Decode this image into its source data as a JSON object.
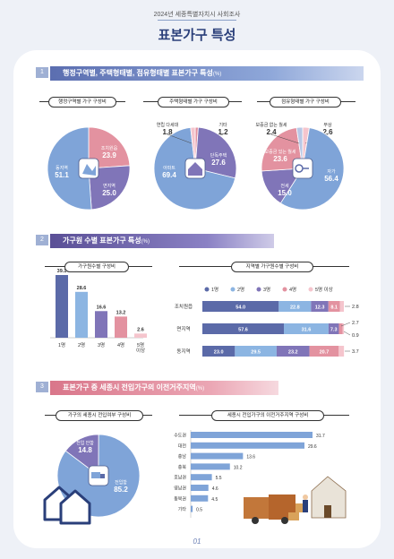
{
  "header": {
    "subtitle": "2024년 세종특별자치시 사회조사",
    "title": "표본가구 특성"
  },
  "sections": [
    {
      "num": "1",
      "title": "행정구역별, 주택형태별, 점유형태별 표본가구 특성",
      "unit": "(%)"
    },
    {
      "num": "2",
      "title": "가구원 수별 표본가구 특성",
      "unit": "(%)"
    },
    {
      "num": "3",
      "title": "표본가구 중 세종시 전입가구의 이전거주지역",
      "unit": "(%)"
    }
  ],
  "footer": {
    "page": "01"
  },
  "colors": {
    "blue": "#7fa4d8",
    "purple": "#8075b8",
    "pink": "#e392a0",
    "navy": "#5b6aa8",
    "light_blue": "#8cb5e2",
    "light_pink": "#f5c5cd"
  },
  "icons": [
    "map-icon",
    "house-icon",
    "key-icon",
    "truck-icon",
    "houses-icon",
    "moving-scene-icon"
  ],
  "chart_data": [
    {
      "id": "pie_admin",
      "type": "pie",
      "title": "행정구역별 가구 구성비",
      "categories": [
        "조치원읍",
        "면지역",
        "동지역"
      ],
      "values": [
        23.9,
        25.0,
        51.1
      ],
      "labels": [
        "23.9",
        "25.0",
        "51.1"
      ],
      "colors": [
        "#e392a0",
        "#8075b8",
        "#7fa4d8"
      ]
    },
    {
      "id": "pie_housing",
      "type": "pie",
      "title": "주택형태별 가구 구성비",
      "categories": [
        "기타",
        "단독주택",
        "아파트",
        "연립 다세대"
      ],
      "values": [
        1.2,
        27.6,
        69.4,
        1.8
      ],
      "labels": [
        "1.2",
        "27.6",
        "69.4",
        "1.8"
      ],
      "colors": [
        "#e392a0",
        "#8075b8",
        "#7fa4d8",
        "#f5c5cd"
      ]
    },
    {
      "id": "pie_tenure",
      "type": "pie",
      "title": "점유형태별 가구 구성비",
      "categories": [
        "무상",
        "자가",
        "전세",
        "보증금 있는 월세",
        "보증금 없는 월세"
      ],
      "values": [
        2.6,
        56.4,
        15.0,
        23.6,
        2.4
      ],
      "labels": [
        "2.6",
        "56.4",
        "15.0",
        "23.6",
        "2.4"
      ],
      "colors": [
        "#f5c5cd",
        "#7fa4d8",
        "#8075b8",
        "#e392a0",
        "#b9c8e6"
      ]
    },
    {
      "id": "bar_hhsize",
      "type": "bar",
      "title": "가구원수별 구성비",
      "categories": [
        "1명",
        "2명",
        "3명",
        "4명",
        "5명 이상"
      ],
      "values": [
        39.1,
        28.6,
        16.6,
        13.2,
        2.6
      ],
      "labels": [
        "39.1",
        "28.6",
        "16.6",
        "13.2",
        "2.6"
      ],
      "colors": [
        "#5b6aa8",
        "#8cb5e2",
        "#8075b8",
        "#e392a0",
        "#f5c5cd"
      ]
    },
    {
      "id": "stacked_region",
      "type": "bar",
      "title": "지역별 가구원수별 구성비",
      "stacked": true,
      "orientation": "horizontal",
      "categories": [
        "조치원읍",
        "면지역",
        "동지역"
      ],
      "series": [
        {
          "name": "1명",
          "values": [
            54.0,
            57.6,
            23.0
          ],
          "labels": [
            "54.0",
            "57.6",
            "23.0"
          ]
        },
        {
          "name": "2명",
          "values": [
            22.8,
            31.6,
            29.5
          ],
          "labels": [
            "22.8",
            "31.6",
            "29.5"
          ]
        },
        {
          "name": "3명",
          "values": [
            12.3,
            7.3,
            23.2
          ],
          "labels": [
            "12.3",
            "7.3",
            "23.2"
          ]
        },
        {
          "name": "4명",
          "values": [
            8.1,
            2.7,
            20.7
          ],
          "labels": [
            "8.1",
            "",
            "20.7"
          ]
        },
        {
          "name": "5명 이상",
          "values": [
            2.8,
            0.9,
            3.7
          ],
          "labels": [
            "",
            "",
            ""
          ]
        }
      ],
      "outside_labels": [
        [
          "2.8"
        ],
        [
          "2.7",
          "0.9"
        ],
        [
          "3.7"
        ]
      ],
      "colors": [
        "#5b6aa8",
        "#8cb5e2",
        "#8075b8",
        "#e392a0",
        "#f5c5cd"
      ]
    },
    {
      "id": "pie_move",
      "type": "pie",
      "title": "가구의 세종시 전입여부 구성비",
      "categories": [
        "전입 안함",
        "전입함"
      ],
      "values": [
        14.8,
        85.2
      ],
      "labels": [
        "14.8",
        "85.2"
      ],
      "colors": [
        "#8075b8",
        "#7fa4d8"
      ]
    },
    {
      "id": "bar_prev_region",
      "type": "bar",
      "title": "세종시 전입가구의 이전거주지역 구성비",
      "orientation": "horizontal",
      "categories": [
        "수도권",
        "대전",
        "충남",
        "충북",
        "호남권",
        "영남권",
        "동북권",
        "기타"
      ],
      "values": [
        31.7,
        29.6,
        13.6,
        10.2,
        5.5,
        4.6,
        4.5,
        0.5
      ],
      "labels": [
        "31.7",
        "29.6",
        "13.6",
        "10.2",
        "5.5",
        "4.6",
        "4.5",
        "0.5"
      ],
      "colors": [
        "#7fa4d8"
      ]
    }
  ]
}
